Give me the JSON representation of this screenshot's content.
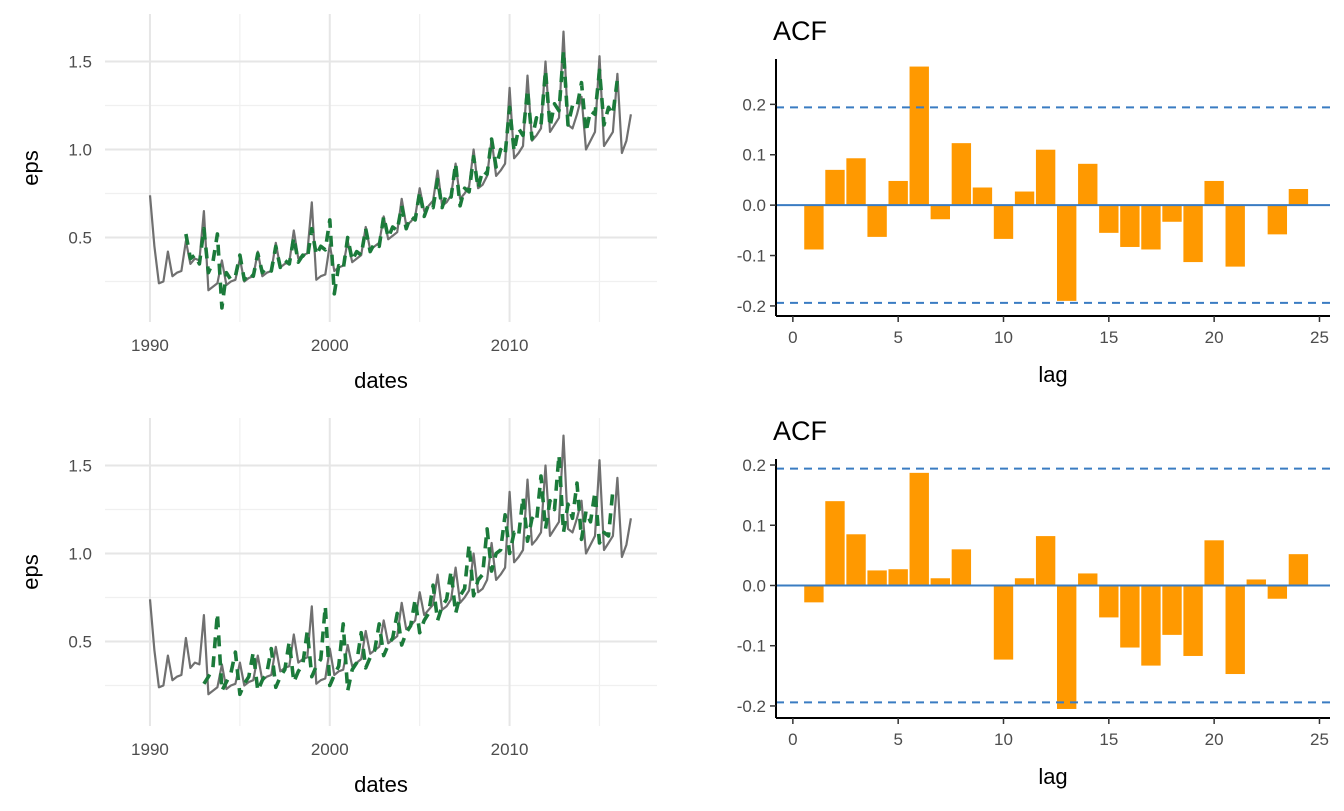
{
  "colors": {
    "observed": "#707070",
    "fitted": "#1b7a3a",
    "bar": "#ff9900",
    "ref_line": "#3a7cc2",
    "grid": "#e6e6e6"
  },
  "chart_data": [
    {
      "type": "line",
      "xlabel": "dates",
      "ylabel": "eps",
      "x_ticks": [
        "1990",
        "2000",
        "2010"
      ],
      "y_ticks": [
        "0.5",
        "1.0",
        "1.5"
      ],
      "xlim": [
        1987.5,
        2018.2
      ],
      "ylim": [
        0.02,
        1.77
      ],
      "series": [
        {
          "style": "solid",
          "x_start": 1990.0,
          "x_step": 0.25,
          "values": [
            0.74,
            0.45,
            0.24,
            0.25,
            0.42,
            0.28,
            0.3,
            0.31,
            0.48,
            0.35,
            0.38,
            0.37,
            0.65,
            0.2,
            0.22,
            0.24,
            0.37,
            0.23,
            0.25,
            0.26,
            0.38,
            0.25,
            0.27,
            0.28,
            0.42,
            0.28,
            0.3,
            0.31,
            0.47,
            0.33,
            0.35,
            0.36,
            0.54,
            0.38,
            0.4,
            0.41,
            0.7,
            0.26,
            0.28,
            0.29,
            0.46,
            0.31,
            0.33,
            0.34,
            0.48,
            0.36,
            0.38,
            0.4,
            0.56,
            0.43,
            0.45,
            0.47,
            0.62,
            0.49,
            0.51,
            0.53,
            0.72,
            0.57,
            0.59,
            0.62,
            0.78,
            0.65,
            0.68,
            0.71,
            0.88,
            0.68,
            0.7,
            0.74,
            0.92,
            0.72,
            0.75,
            0.79,
            1.0,
            0.78,
            0.8,
            0.85,
            1.06,
            0.85,
            0.88,
            0.92,
            1.35,
            0.95,
            0.98,
            1.02,
            1.42,
            1.05,
            1.08,
            1.12,
            1.5,
            1.1,
            1.14,
            1.18,
            1.67,
            1.14,
            1.12,
            1.2,
            1.3,
            1.0,
            1.05,
            1.1,
            1.53,
            1.02,
            1.06,
            1.1,
            1.43,
            0.98,
            1.05,
            1.2
          ]
        },
        {
          "style": "dashed",
          "x_start": 1992.0,
          "x_step": 0.25,
          "values": [
            0.52,
            0.38,
            0.4,
            0.35,
            0.55,
            0.3,
            0.36,
            0.52,
            0.1,
            0.3,
            0.26,
            0.28,
            0.4,
            0.26,
            0.3,
            0.28,
            0.41,
            0.3,
            0.33,
            0.31,
            0.45,
            0.33,
            0.37,
            0.35,
            0.5,
            0.36,
            0.4,
            0.38,
            0.55,
            0.4,
            0.45,
            0.43,
            0.6,
            0.18,
            0.34,
            0.32,
            0.5,
            0.37,
            0.42,
            0.4,
            0.55,
            0.42,
            0.47,
            0.45,
            0.62,
            0.5,
            0.56,
            0.54,
            0.68,
            0.55,
            0.62,
            0.6,
            0.76,
            0.62,
            0.69,
            0.67,
            0.83,
            0.67,
            0.75,
            0.73,
            0.92,
            0.68,
            0.78,
            0.76,
            0.96,
            0.78,
            0.88,
            0.86,
            1.06,
            0.9,
            1.0,
            0.97,
            1.24,
            0.99,
            1.12,
            1.08,
            1.34,
            1.06,
            1.18,
            1.14,
            1.45,
            1.13,
            1.26,
            1.22,
            1.56,
            1.14,
            1.25,
            1.24,
            1.38,
            1.1,
            1.22,
            1.2,
            1.45,
            1.14,
            1.24,
            1.2,
            1.4
          ]
        }
      ]
    },
    {
      "type": "bar",
      "title": "ACF",
      "xlabel": "lag",
      "x_ticks": [
        "0",
        "5",
        "10",
        "15",
        "20",
        "25"
      ],
      "y_ticks": [
        "-0.2",
        "-0.1",
        "0.0",
        "0.1",
        "0.2"
      ],
      "xlim": [
        -0.8,
        25.5
      ],
      "ylim": [
        -0.22,
        0.29
      ],
      "conf_limit": 0.194,
      "lags": [
        1,
        2,
        3,
        4,
        5,
        6,
        7,
        8,
        9,
        10,
        11,
        12,
        13,
        14,
        15,
        16,
        17,
        18,
        19,
        20,
        21,
        22,
        23,
        24
      ],
      "values": [
        -0.088,
        0.07,
        0.093,
        -0.063,
        0.048,
        0.275,
        -0.028,
        0.123,
        0.035,
        -0.067,
        0.027,
        0.11,
        -0.19,
        0.082,
        -0.055,
        -0.083,
        -0.088,
        -0.033,
        -0.113,
        0.048,
        -0.122,
        0.0,
        -0.058,
        0.032
      ]
    },
    {
      "type": "line",
      "xlabel": "dates",
      "ylabel": "eps",
      "x_ticks": [
        "1990",
        "2000",
        "2010"
      ],
      "y_ticks": [
        "0.5",
        "1.0",
        "1.5"
      ],
      "xlim": [
        1987.5,
        2018.2
      ],
      "ylim": [
        0.02,
        1.77
      ],
      "series": [
        {
          "style": "solid",
          "x_start": 1990.0,
          "x_step": 0.25,
          "values": [
            0.74,
            0.45,
            0.24,
            0.25,
            0.42,
            0.28,
            0.3,
            0.31,
            0.52,
            0.35,
            0.38,
            0.37,
            0.65,
            0.2,
            0.22,
            0.24,
            0.37,
            0.23,
            0.25,
            0.26,
            0.38,
            0.25,
            0.27,
            0.28,
            0.42,
            0.28,
            0.3,
            0.31,
            0.47,
            0.33,
            0.35,
            0.36,
            0.54,
            0.38,
            0.4,
            0.41,
            0.7,
            0.26,
            0.28,
            0.29,
            0.46,
            0.31,
            0.33,
            0.34,
            0.48,
            0.36,
            0.38,
            0.4,
            0.56,
            0.43,
            0.45,
            0.47,
            0.62,
            0.49,
            0.51,
            0.53,
            0.72,
            0.57,
            0.59,
            0.62,
            0.78,
            0.65,
            0.68,
            0.71,
            0.88,
            0.68,
            0.7,
            0.74,
            0.92,
            0.72,
            0.75,
            0.79,
            1.0,
            0.78,
            0.8,
            0.85,
            1.06,
            0.85,
            0.88,
            0.92,
            1.35,
            0.95,
            0.98,
            1.02,
            1.42,
            1.05,
            1.08,
            1.12,
            1.5,
            1.1,
            1.14,
            1.18,
            1.67,
            1.14,
            1.12,
            1.2,
            1.3,
            1.0,
            1.05,
            1.1,
            1.53,
            1.02,
            1.06,
            1.1,
            1.43,
            0.98,
            1.05,
            1.2
          ]
        },
        {
          "style": "dashed",
          "x_start": 1993.0,
          "x_step": 0.25,
          "values": [
            0.26,
            0.3,
            0.35,
            0.66,
            0.22,
            0.27,
            0.32,
            0.44,
            0.2,
            0.26,
            0.3,
            0.44,
            0.22,
            0.28,
            0.32,
            0.46,
            0.24,
            0.3,
            0.34,
            0.5,
            0.27,
            0.33,
            0.37,
            0.56,
            0.3,
            0.36,
            0.4,
            0.7,
            0.25,
            0.31,
            0.36,
            0.6,
            0.22,
            0.34,
            0.38,
            0.55,
            0.35,
            0.41,
            0.45,
            0.6,
            0.42,
            0.48,
            0.52,
            0.66,
            0.48,
            0.55,
            0.59,
            0.74,
            0.55,
            0.62,
            0.66,
            0.82,
            0.62,
            0.7,
            0.74,
            0.9,
            0.66,
            0.76,
            0.8,
            1.05,
            0.76,
            0.85,
            0.88,
            1.14,
            0.9,
            1.0,
            1.02,
            1.22,
            1.0,
            1.12,
            1.1,
            1.32,
            1.07,
            1.2,
            1.18,
            1.44,
            1.14,
            1.3,
            1.25,
            1.56,
            1.12,
            1.28,
            1.2,
            1.4,
            1.08,
            1.24,
            1.18,
            1.35,
            1.06,
            1.12,
            1.1,
            1.36
          ]
        }
      ]
    },
    {
      "type": "bar",
      "title": "ACF",
      "xlabel": "lag",
      "x_ticks": [
        "0",
        "5",
        "10",
        "15",
        "20",
        "25"
      ],
      "y_ticks": [
        "-0.2",
        "-0.1",
        "0.0",
        "0.1",
        "0.2"
      ],
      "xlim": [
        -0.8,
        25.5
      ],
      "ylim": [
        -0.22,
        0.21
      ],
      "conf_limit": 0.194,
      "lags": [
        1,
        2,
        3,
        4,
        5,
        6,
        7,
        8,
        9,
        10,
        11,
        12,
        13,
        14,
        15,
        16,
        17,
        18,
        19,
        20,
        21,
        22,
        23,
        24
      ],
      "values": [
        -0.028,
        0.14,
        0.085,
        0.025,
        0.027,
        0.187,
        0.012,
        0.06,
        0.0,
        -0.123,
        0.012,
        0.082,
        -0.205,
        0.02,
        -0.053,
        -0.103,
        -0.133,
        -0.082,
        -0.117,
        0.075,
        -0.147,
        0.01,
        -0.022,
        0.052
      ]
    }
  ]
}
